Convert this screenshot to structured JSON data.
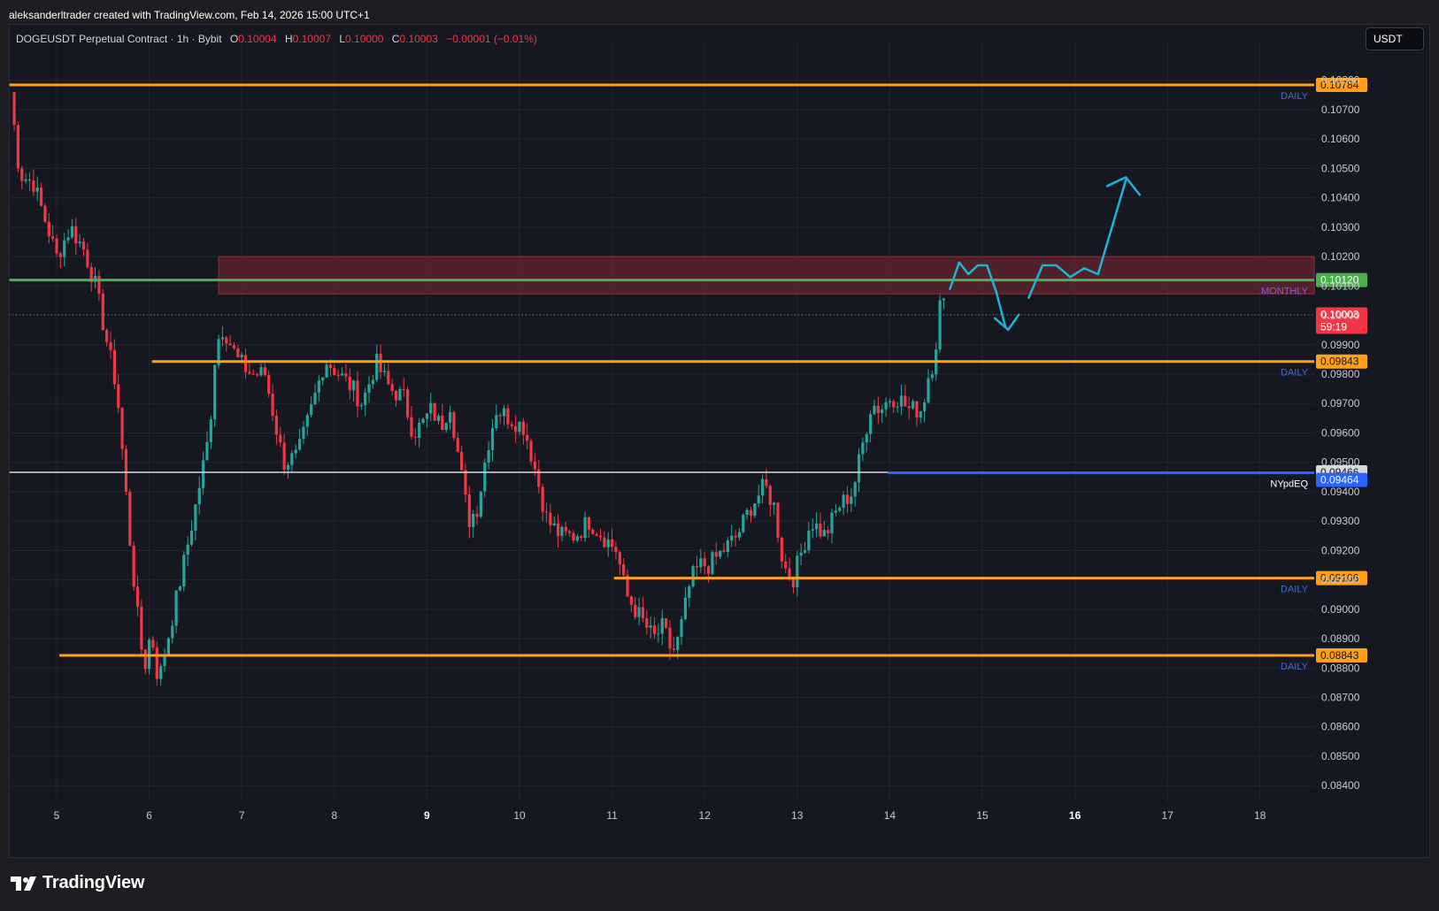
{
  "header": {
    "caption": "aleksanderltrader created with TradingView.com, Feb 14, 2026 15:00 UTC+1"
  },
  "legend": {
    "symbol": "DOGEUSDT Perpetual Contract · 1h · Bybit",
    "open_key": "O",
    "open": "0.10004",
    "high_key": "H",
    "high": "0.10007",
    "low_key": "L",
    "low": "0.10000",
    "close_key": "C",
    "close": "0.10003",
    "change": "−0.00001 (−0.01%)"
  },
  "currency_button": {
    "label": "USDT"
  },
  "brand": {
    "name": "TradingView",
    "icon": "tradingview-logo-icon"
  },
  "colors": {
    "background": "#161821",
    "bull": "#26a69a",
    "bear": "#f23645",
    "daily_level": "#ff9f1a",
    "monthly_level": "#4caf50",
    "pdeq_level": "#2962ff",
    "zone": "#6b2530",
    "forecast_arrow": "#1cb5d8"
  },
  "chart_data": {
    "type": "candlestick",
    "title": "DOGEUSDT Perpetual Contract · 1h · Bybit",
    "ylim": [
      0.0834,
      0.1086
    ],
    "y_ticks": [
      "0.08400",
      "0.08500",
      "0.08600",
      "0.08700",
      "0.08800",
      "0.08900",
      "0.09000",
      "0.09100",
      "0.09200",
      "0.09300",
      "0.09400",
      "0.09500",
      "0.09600",
      "0.09700",
      "0.09800",
      "0.09900",
      "0.10000",
      "0.10100",
      "0.10200",
      "0.10300",
      "0.10400",
      "0.10500",
      "0.10600",
      "0.10700",
      "0.10800"
    ],
    "x_ticks": [
      {
        "label": "5",
        "day": 5,
        "bold": false
      },
      {
        "label": "6",
        "day": 6,
        "bold": false
      },
      {
        "label": "7",
        "day": 7,
        "bold": false
      },
      {
        "label": "8",
        "day": 8,
        "bold": false
      },
      {
        "label": "9",
        "day": 9,
        "bold": true
      },
      {
        "label": "10",
        "day": 10,
        "bold": false
      },
      {
        "label": "11",
        "day": 11,
        "bold": false
      },
      {
        "label": "12",
        "day": 12,
        "bold": false
      },
      {
        "label": "13",
        "day": 13,
        "bold": false
      },
      {
        "label": "14",
        "day": 14,
        "bold": false
      },
      {
        "label": "15",
        "day": 15,
        "bold": false
      },
      {
        "label": "16",
        "day": 16,
        "bold": true
      },
      {
        "label": "17",
        "day": 17,
        "bold": false
      },
      {
        "label": "18",
        "day": 18,
        "bold": false
      }
    ],
    "x_range_days": [
      4.49,
      18.6
    ],
    "levels": [
      {
        "value": 0.10784,
        "label": "0.10784",
        "tag": "DAILY",
        "kind": "daily",
        "start_day": 4.49
      },
      {
        "value": 0.1012,
        "label": "0.10120",
        "tag": "MONTHLY",
        "kind": "monthly",
        "start_day": 4.49
      },
      {
        "value": 0.09843,
        "label": "0.09843",
        "tag": "DAILY",
        "kind": "daily",
        "start_day": 6.03
      },
      {
        "value": 0.09466,
        "label": "0.09466",
        "tag": "",
        "kind": "white",
        "start_day": 4.49
      },
      {
        "value": 0.09464,
        "label": "0.09464",
        "tag": "NYpdEQ",
        "kind": "pdeq",
        "start_day": 13.98
      },
      {
        "value": 0.09106,
        "label": "0.09106",
        "tag": "DAILY",
        "kind": "daily",
        "start_day": 11.02
      },
      {
        "value": 0.08843,
        "label": "0.08843",
        "tag": "DAILY",
        "kind": "daily",
        "start_day": 5.03
      }
    ],
    "current_price": {
      "value": 0.10003,
      "label": "0.10003",
      "countdown": "59:19"
    },
    "zone": {
      "top": 0.102,
      "bottom": 0.10073,
      "start_day": 6.75
    },
    "key_points": [
      [
        4.5,
        0.1076
      ],
      [
        4.6,
        0.1048
      ],
      [
        4.75,
        0.1045
      ],
      [
        4.9,
        0.103
      ],
      [
        5.0,
        0.102
      ],
      [
        5.15,
        0.103
      ],
      [
        5.3,
        0.1022
      ],
      [
        5.42,
        0.101
      ],
      [
        5.55,
        0.099
      ],
      [
        5.65,
        0.0975
      ],
      [
        5.72,
        0.095
      ],
      [
        5.8,
        0.092
      ],
      [
        5.9,
        0.089
      ],
      [
        5.95,
        0.088
      ],
      [
        6.02,
        0.0893
      ],
      [
        6.1,
        0.0875
      ],
      [
        6.2,
        0.089
      ],
      [
        6.35,
        0.0912
      ],
      [
        6.5,
        0.0935
      ],
      [
        6.65,
        0.096
      ],
      [
        6.72,
        0.099
      ],
      [
        6.8,
        0.0996
      ],
      [
        6.95,
        0.0985
      ],
      [
        7.1,
        0.098
      ],
      [
        7.25,
        0.098
      ],
      [
        7.35,
        0.0965
      ],
      [
        7.45,
        0.095
      ],
      [
        7.6,
        0.0952
      ],
      [
        7.75,
        0.0968
      ],
      [
        7.9,
        0.0985
      ],
      [
        8.05,
        0.098
      ],
      [
        8.2,
        0.0975
      ],
      [
        8.3,
        0.097
      ],
      [
        8.45,
        0.0984
      ],
      [
        8.6,
        0.0975
      ],
      [
        8.75,
        0.0972
      ],
      [
        8.85,
        0.096
      ],
      [
        8.95,
        0.0963
      ],
      [
        9.05,
        0.0968
      ],
      [
        9.15,
        0.0962
      ],
      [
        9.25,
        0.097
      ],
      [
        9.35,
        0.095
      ],
      [
        9.45,
        0.093
      ],
      [
        9.55,
        0.0935
      ],
      [
        9.65,
        0.0955
      ],
      [
        9.75,
        0.0968
      ],
      [
        9.9,
        0.0965
      ],
      [
        10.05,
        0.0962
      ],
      [
        10.15,
        0.095
      ],
      [
        10.3,
        0.093
      ],
      [
        10.45,
        0.0925
      ],
      [
        10.6,
        0.0925
      ],
      [
        10.75,
        0.093
      ],
      [
        10.9,
        0.0925
      ],
      [
        11.05,
        0.092
      ],
      [
        11.15,
        0.0905
      ],
      [
        11.25,
        0.09
      ],
      [
        11.35,
        0.0895
      ],
      [
        11.45,
        0.089
      ],
      [
        11.55,
        0.0894
      ],
      [
        11.65,
        0.0885
      ],
      [
        11.72,
        0.089
      ],
      [
        11.85,
        0.091
      ],
      [
        11.95,
        0.0915
      ],
      [
        12.05,
        0.0915
      ],
      [
        12.2,
        0.092
      ],
      [
        12.35,
        0.0925
      ],
      [
        12.5,
        0.0935
      ],
      [
        12.65,
        0.0942
      ],
      [
        12.75,
        0.0935
      ],
      [
        12.85,
        0.0915
      ],
      [
        12.95,
        0.091
      ],
      [
        13.05,
        0.092
      ],
      [
        13.15,
        0.093
      ],
      [
        13.3,
        0.0925
      ],
      [
        13.45,
        0.0935
      ],
      [
        13.6,
        0.094
      ],
      [
        13.7,
        0.0955
      ],
      [
        13.8,
        0.097
      ],
      [
        13.9,
        0.0968
      ],
      [
        14.0,
        0.0972
      ],
      [
        14.1,
        0.0972
      ],
      [
        14.2,
        0.0968
      ],
      [
        14.35,
        0.0968
      ],
      [
        14.42,
        0.098
      ],
      [
        14.48,
        0.0985
      ],
      [
        14.55,
        0.1006
      ],
      [
        14.62,
        0.10003
      ]
    ],
    "forecast_path": [
      [
        14.65,
        0.1009
      ],
      [
        14.75,
        0.1018
      ],
      [
        14.85,
        0.1014
      ],
      [
        14.95,
        0.1017
      ],
      [
        15.05,
        0.1017
      ],
      [
        15.15,
        0.1008
      ],
      [
        15.25,
        0.0996
      ],
      [
        15.5,
        0.1006
      ],
      [
        15.65,
        0.1017
      ],
      [
        15.8,
        0.1017
      ],
      [
        15.95,
        0.1013
      ],
      [
        16.1,
        0.1016
      ],
      [
        16.25,
        0.1014
      ],
      [
        16.4,
        0.103
      ],
      [
        16.55,
        0.1046
      ]
    ],
    "forecast_arrowhead": [
      [
        16.35,
        0.1044
      ],
      [
        16.55,
        0.1047
      ],
      [
        16.7,
        0.1041
      ]
    ]
  }
}
